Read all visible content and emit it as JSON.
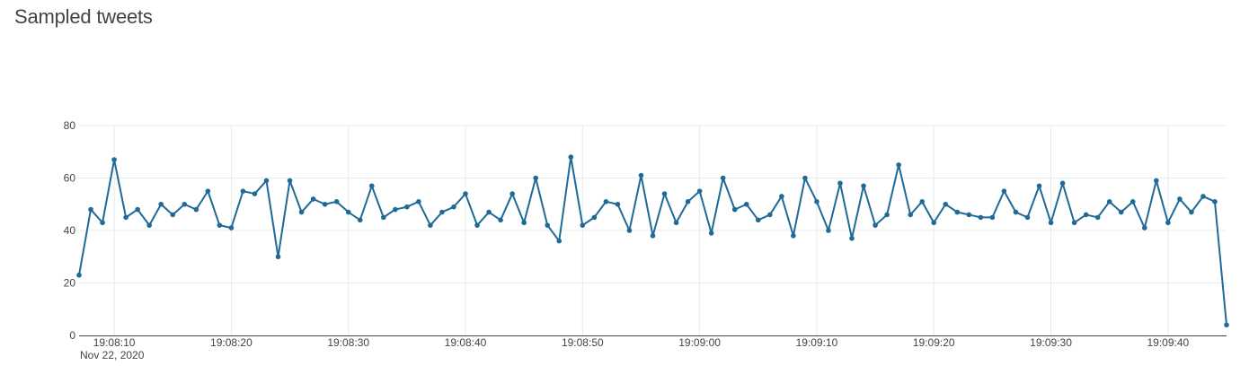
{
  "chart_data": {
    "type": "line",
    "title": "Sampled tweets",
    "xlabel": "",
    "ylabel": "",
    "ylim": [
      0,
      80
    ],
    "yticks": [
      0,
      20,
      40,
      60,
      80
    ],
    "x_range": [
      "2020-11-22 19:08:07",
      "2020-11-22 19:09:45"
    ],
    "xticks": [
      {
        "time": "19:08:10",
        "label": "19:08:10",
        "sublabel": "Nov 22, 2020"
      },
      {
        "time": "19:08:20",
        "label": "19:08:20",
        "sublabel": ""
      },
      {
        "time": "19:08:30",
        "label": "19:08:30",
        "sublabel": ""
      },
      {
        "time": "19:08:40",
        "label": "19:08:40",
        "sublabel": ""
      },
      {
        "time": "19:08:50",
        "label": "19:08:50",
        "sublabel": ""
      },
      {
        "time": "19:09:00",
        "label": "19:09:00",
        "sublabel": ""
      },
      {
        "time": "19:09:10",
        "label": "19:09:10",
        "sublabel": ""
      },
      {
        "time": "19:09:20",
        "label": "19:09:20",
        "sublabel": ""
      },
      {
        "time": "19:09:30",
        "label": "19:09:30",
        "sublabel": ""
      },
      {
        "time": "19:09:40",
        "label": "19:09:40",
        "sublabel": ""
      }
    ],
    "grid": true,
    "legend": "none",
    "color": "#1f6a96",
    "series": [
      {
        "x": [
          "19:08:07",
          "19:08:08",
          "19:08:09",
          "19:08:10",
          "19:08:11",
          "19:08:12",
          "19:08:13",
          "19:08:14",
          "19:08:15",
          "19:08:16",
          "19:08:17",
          "19:08:18",
          "19:08:19",
          "19:08:20",
          "19:08:21",
          "19:08:22",
          "19:08:23",
          "19:08:24",
          "19:08:25",
          "19:08:26",
          "19:08:27",
          "19:08:28",
          "19:08:29",
          "19:08:30",
          "19:08:31",
          "19:08:32",
          "19:08:33",
          "19:08:34",
          "19:08:35",
          "19:08:36",
          "19:08:37",
          "19:08:38",
          "19:08:39",
          "19:08:40",
          "19:08:41",
          "19:08:42",
          "19:08:43",
          "19:08:44",
          "19:08:45",
          "19:08:46",
          "19:08:47",
          "19:08:48",
          "19:08:49",
          "19:08:50",
          "19:08:51",
          "19:08:52",
          "19:08:53",
          "19:08:54",
          "19:08:55",
          "19:08:56",
          "19:08:57",
          "19:08:58",
          "19:08:59",
          "19:09:00",
          "19:09:01",
          "19:09:02",
          "19:09:03",
          "19:09:04",
          "19:09:05",
          "19:09:06",
          "19:09:07",
          "19:09:08",
          "19:09:09",
          "19:09:10",
          "19:09:11",
          "19:09:12",
          "19:09:13",
          "19:09:14",
          "19:09:15",
          "19:09:16",
          "19:09:17",
          "19:09:18",
          "19:09:19",
          "19:09:20",
          "19:09:21",
          "19:09:22",
          "19:09:23",
          "19:09:24",
          "19:09:25",
          "19:09:26",
          "19:09:27",
          "19:09:28",
          "19:09:29",
          "19:09:30",
          "19:09:31",
          "19:09:32",
          "19:09:33",
          "19:09:34",
          "19:09:35",
          "19:09:36",
          "19:09:37",
          "19:09:38",
          "19:09:39",
          "19:09:40",
          "19:09:41",
          "19:09:42",
          "19:09:43",
          "19:09:44",
          "19:09:45"
        ],
        "y": [
          23,
          48,
          43,
          67,
          45,
          48,
          42,
          50,
          46,
          50,
          48,
          55,
          42,
          41,
          55,
          54,
          59,
          30,
          59,
          47,
          52,
          50,
          51,
          47,
          44,
          57,
          45,
          48,
          49,
          51,
          42,
          47,
          49,
          54,
          42,
          47,
          44,
          54,
          43,
          60,
          42,
          36,
          68,
          42,
          45,
          51,
          50,
          40,
          61,
          38,
          54,
          43,
          51,
          55,
          39,
          60,
          48,
          50,
          44,
          46,
          53,
          38,
          60,
          51,
          40,
          58,
          37,
          57,
          42,
          46,
          65,
          46,
          51,
          43,
          50,
          47,
          46,
          45,
          45,
          55,
          47,
          45,
          57,
          43,
          58,
          43,
          46,
          45,
          51,
          47,
          51,
          41,
          59,
          43,
          52,
          47,
          53,
          51,
          4
        ]
      }
    ]
  }
}
